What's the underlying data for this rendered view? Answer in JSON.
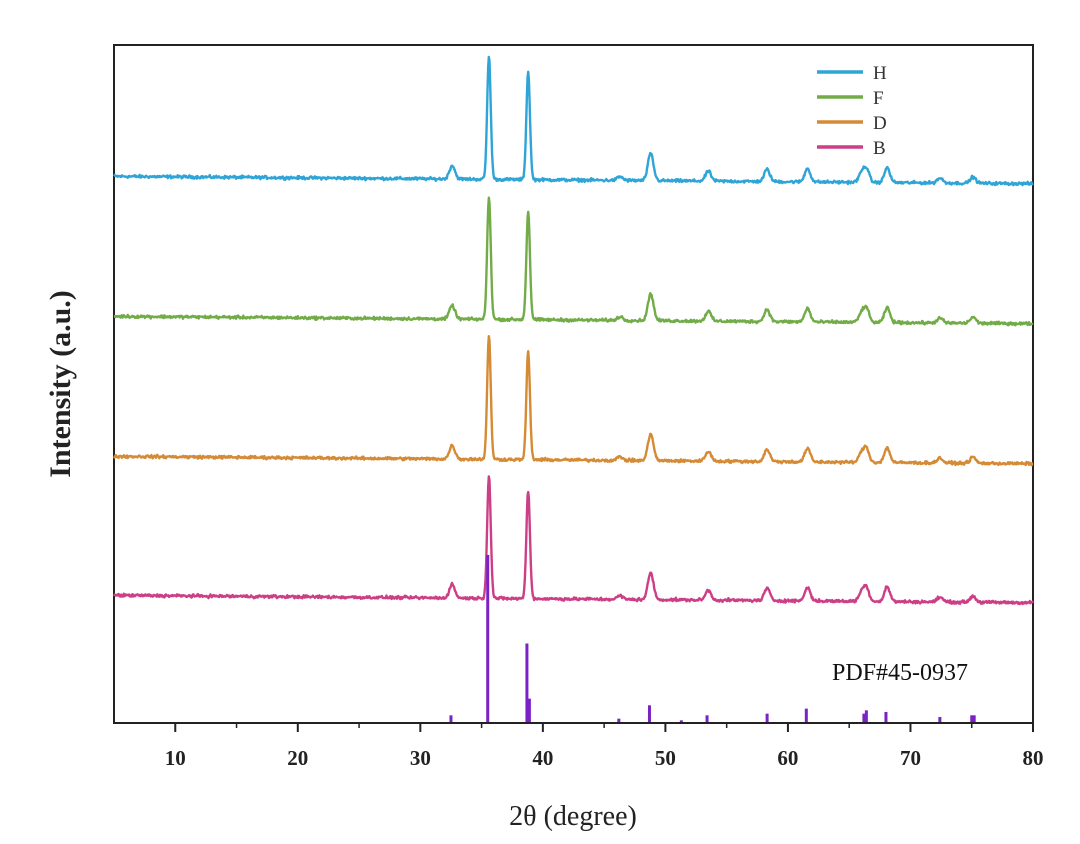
{
  "chart_data": {
    "type": "line",
    "title": "",
    "xlabel": "2θ (degree)",
    "ylabel": "Intensity (a.u.)",
    "xlim": [
      5,
      80
    ],
    "x_ticks": [
      10,
      20,
      30,
      40,
      50,
      60,
      70,
      80
    ],
    "y_ticks_shown": false,
    "grid": false,
    "legend": {
      "placement": "top-right",
      "entries": [
        {
          "name": "H",
          "color": "#2fa4d6"
        },
        {
          "name": "F",
          "color": "#72ac48"
        },
        {
          "name": "D",
          "color": "#d58a35"
        },
        {
          "name": "B",
          "color": "#cc3f86"
        }
      ]
    },
    "series_order_top_to_bottom": [
      "H",
      "F",
      "D",
      "B"
    ],
    "series": [
      {
        "name": "H",
        "color": "#2fa4d6",
        "baseline_start": 0.03,
        "baseline_end": -0.03
      },
      {
        "name": "F",
        "color": "#72ac48",
        "baseline_start": 0.03,
        "baseline_end": -0.03
      },
      {
        "name": "D",
        "color": "#d58a35",
        "baseline_start": 0.03,
        "baseline_end": -0.03
      },
      {
        "name": "B",
        "color": "#cc3f86",
        "baseline_start": 0.03,
        "baseline_end": -0.03
      }
    ],
    "peaks": [
      {
        "two_theta": 32.6,
        "intensity": 0.11
      },
      {
        "two_theta": 35.6,
        "intensity": 1.0
      },
      {
        "two_theta": 38.8,
        "intensity": 0.88
      },
      {
        "two_theta": 46.3,
        "intensity": 0.03
      },
      {
        "two_theta": 48.8,
        "intensity": 0.22
      },
      {
        "two_theta": 53.5,
        "intensity": 0.08
      },
      {
        "two_theta": 58.3,
        "intensity": 0.1
      },
      {
        "two_theta": 61.6,
        "intensity": 0.11
      },
      {
        "two_theta": 66.0,
        "intensity": 0.07
      },
      {
        "two_theta": 66.4,
        "intensity": 0.11
      },
      {
        "two_theta": 68.1,
        "intensity": 0.12
      },
      {
        "two_theta": 72.4,
        "intensity": 0.04
      },
      {
        "two_theta": 75.1,
        "intensity": 0.05
      }
    ],
    "reference": {
      "label": "PDF#45-0937",
      "color": "#7b22c6",
      "lines": [
        {
          "two_theta": 32.5,
          "intensity": 0.04
        },
        {
          "two_theta": 35.5,
          "intensity": 1.0
        },
        {
          "two_theta": 38.7,
          "intensity": 0.47
        },
        {
          "two_theta": 38.9,
          "intensity": 0.14
        },
        {
          "two_theta": 46.2,
          "intensity": 0.02
        },
        {
          "two_theta": 48.7,
          "intensity": 0.1
        },
        {
          "two_theta": 51.3,
          "intensity": 0.01
        },
        {
          "two_theta": 53.4,
          "intensity": 0.04
        },
        {
          "two_theta": 58.3,
          "intensity": 0.05
        },
        {
          "two_theta": 61.5,
          "intensity": 0.08
        },
        {
          "two_theta": 66.2,
          "intensity": 0.05
        },
        {
          "two_theta": 66.4,
          "intensity": 0.07
        },
        {
          "two_theta": 68.0,
          "intensity": 0.06
        },
        {
          "two_theta": 72.4,
          "intensity": 0.03
        },
        {
          "two_theta": 75.0,
          "intensity": 0.04
        },
        {
          "two_theta": 75.2,
          "intensity": 0.04
        }
      ]
    }
  }
}
